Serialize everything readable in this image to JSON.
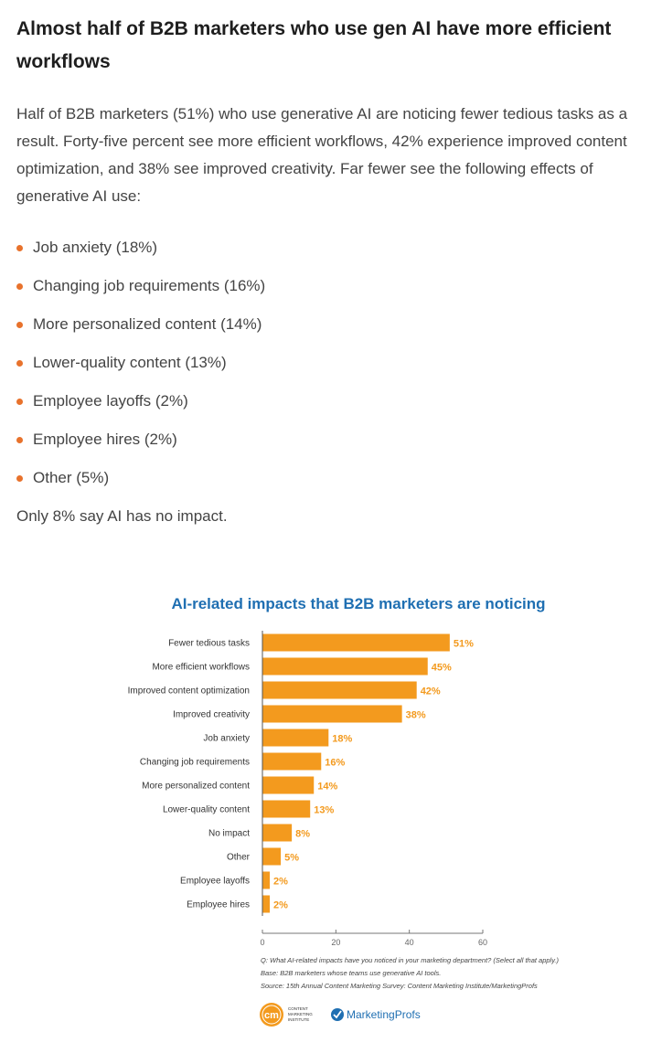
{
  "article": {
    "headline": "Almost half of B2B marketers who use gen AI have more efficient workflows",
    "intro": "Half of B2B marketers (51%) who use generative AI are noticing fewer tedious tasks as a result. Forty-five percent see more efficient workflows, 42% experience improved content optimization, and 38% see improved creativity. Far fewer see the following effects of generative AI use:",
    "bullets": [
      "Job anxiety (18%)",
      "Changing job requirements (16%)",
      "More personalized content (14%)",
      "Lower-quality content (13%)",
      "Employee layoffs (2%)",
      "Employee hires (2%)",
      "Other (5%)"
    ],
    "closing": "Only 8% say AI has no impact."
  },
  "chart_data": {
    "type": "bar",
    "orientation": "horizontal",
    "title": "AI-related impacts that B2B marketers are noticing",
    "categories": [
      "Fewer tedious tasks",
      "More efficient workflows",
      "Improved content optimization",
      "Improved creativity",
      "Job anxiety",
      "Changing job requirements",
      "More personalized content",
      "Lower-quality content",
      "No impact",
      "Other",
      "Employee layoffs",
      "Employee hires"
    ],
    "values": [
      51,
      45,
      42,
      38,
      18,
      16,
      14,
      13,
      8,
      5,
      2,
      2
    ],
    "value_labels": [
      "51%",
      "45%",
      "42%",
      "38%",
      "18%",
      "16%",
      "14%",
      "13%",
      "8%",
      "5%",
      "2%",
      "2%"
    ],
    "xlim": [
      0,
      60
    ],
    "xticks": [
      0,
      20,
      40,
      60
    ],
    "xtick_labels": [
      "0",
      "20",
      "40",
      "60"
    ],
    "grid": false,
    "bar_color": "#f39a1e",
    "title_color": "#1f6fb2",
    "notes": [
      "Q: What AI-related impacts have you noticed in your marketing department? (Select all that apply.)",
      "Base: B2B marketers whose teams use generative AI tools.",
      "Source: 15th Annual Content Marketing Survey: Content Marketing Institute/MarketingProfs"
    ],
    "logos": {
      "cmi_mark": "cm",
      "cmi_text": [
        "CONTENT",
        "MARKETING",
        "INSTITUTE"
      ],
      "marketingprofs": "MarketingProfs"
    }
  },
  "colors": {
    "accent": "#e8722c",
    "bar": "#f39a1e",
    "chart_title": "#1f6fb2",
    "mp_blue": "#1f6fb2"
  }
}
